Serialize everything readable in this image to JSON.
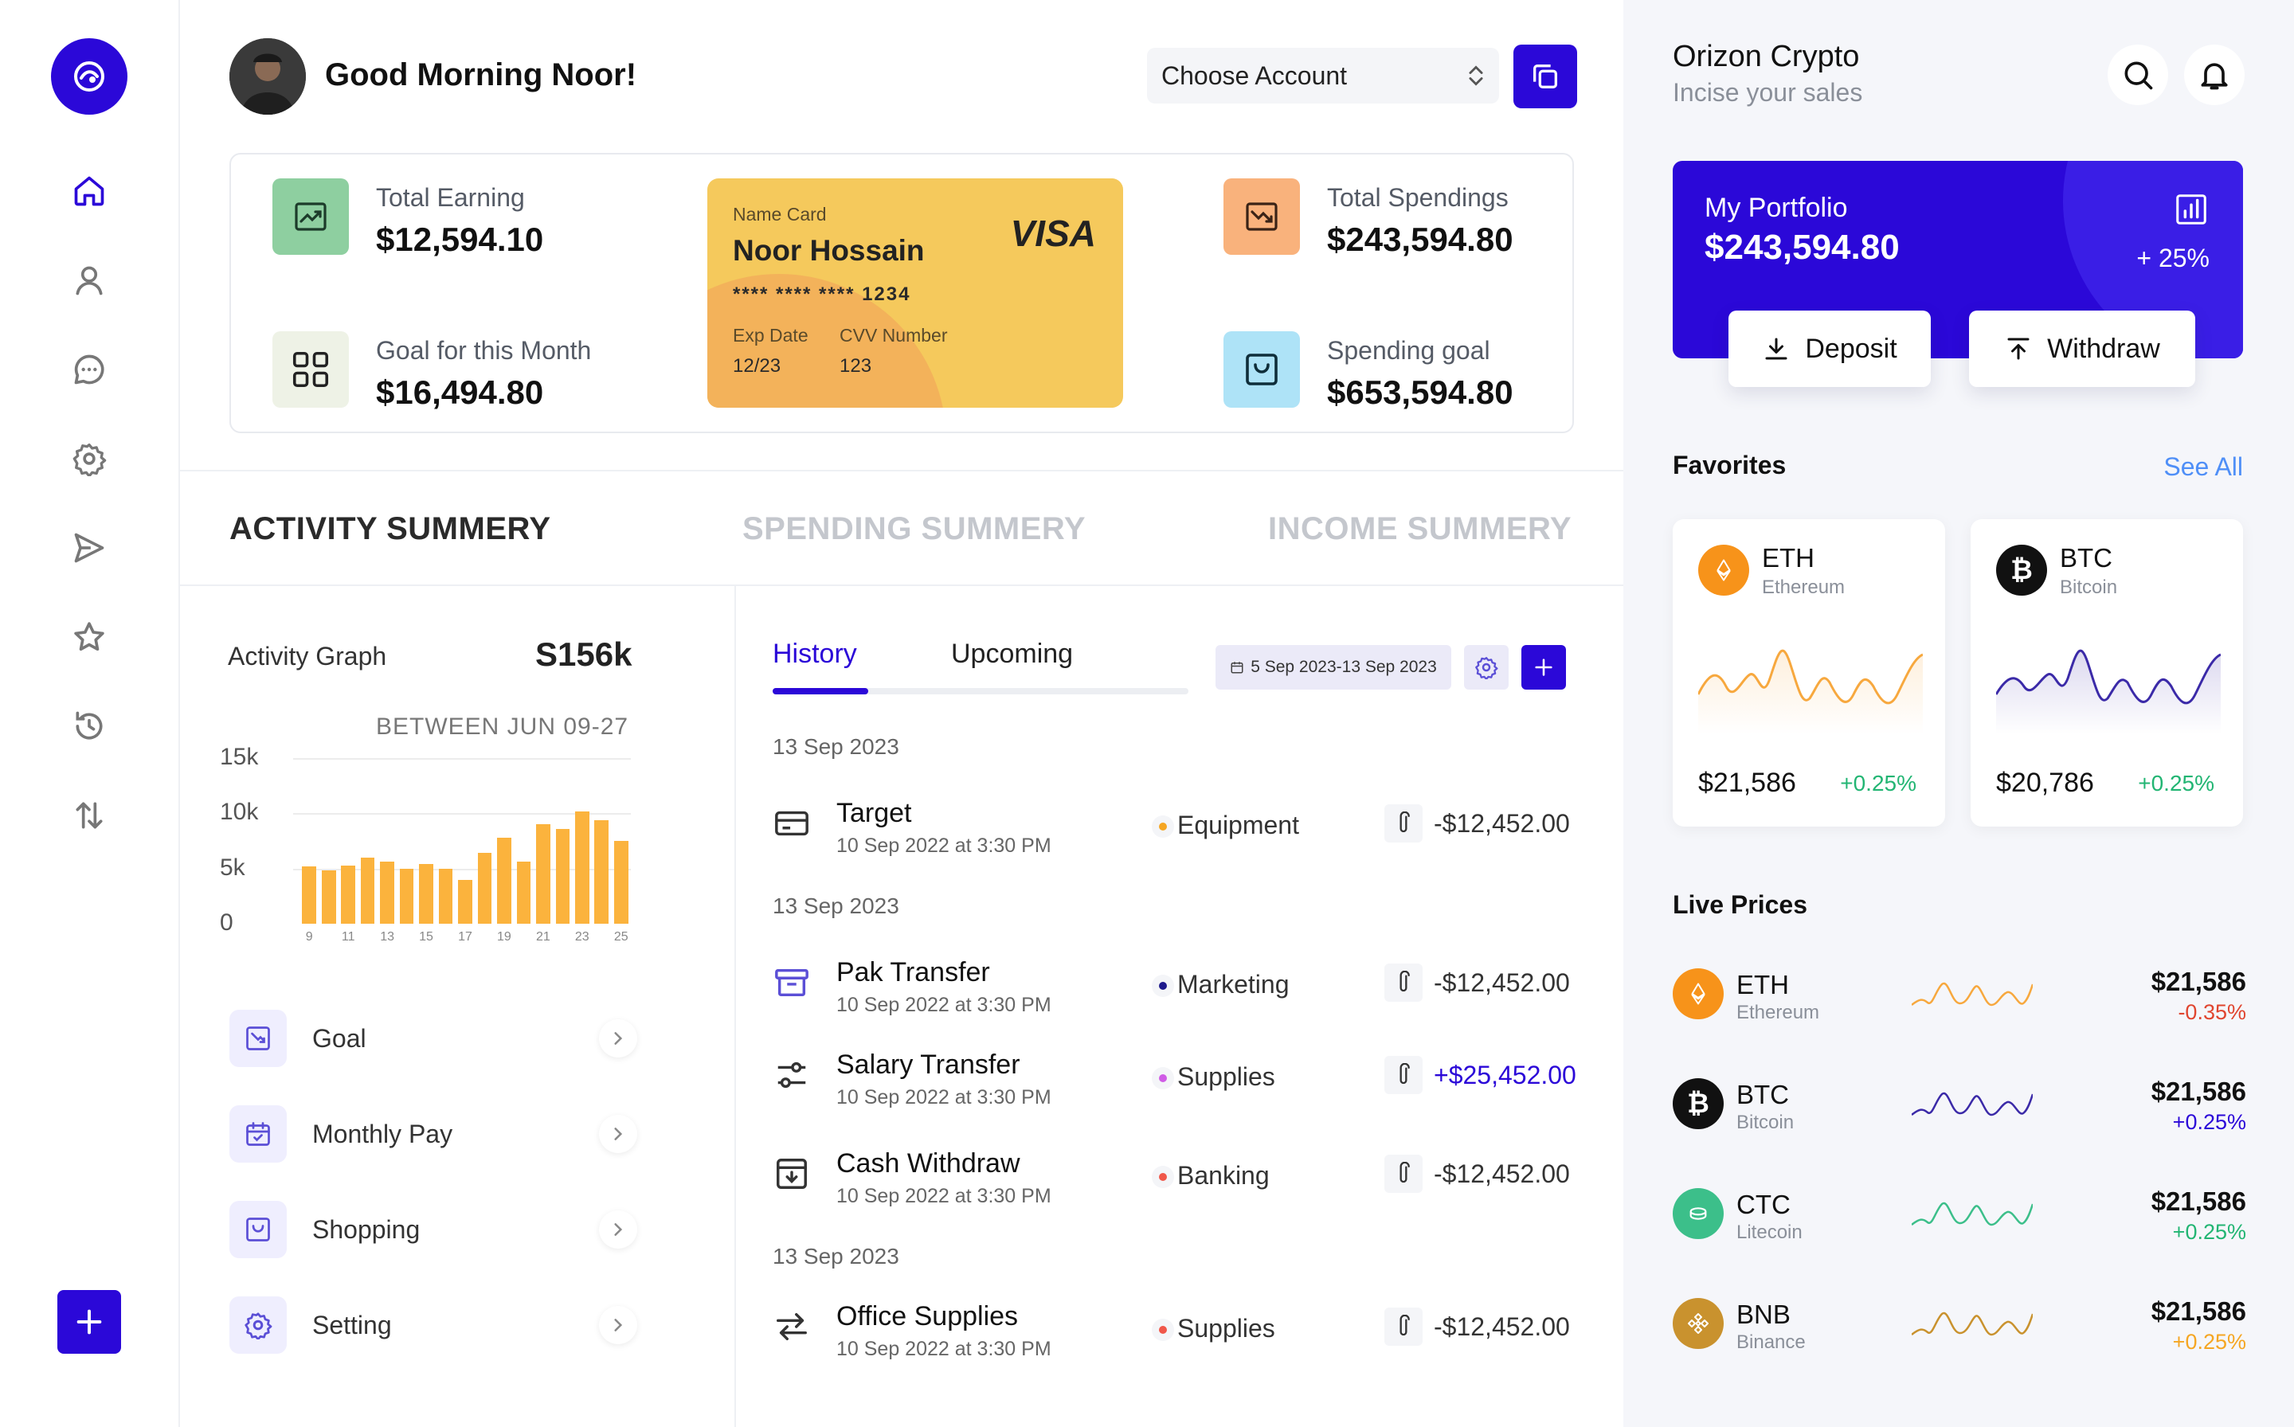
{
  "header": {
    "greeting": "Good Morning Noor!",
    "account_select": "Choose Account"
  },
  "stats": {
    "total_earning": {
      "label": "Total Earning",
      "value": "$12,594.10"
    },
    "goal_month": {
      "label": "Goal for this Month",
      "value": "$16,494.80"
    },
    "total_spendings": {
      "label": "Total Spendings",
      "value": "$243,594.80"
    },
    "spending_goal": {
      "label": "Spending goal",
      "value": "$653,594.80"
    }
  },
  "card": {
    "name_label": "Name Card",
    "holder": "Noor Hossain",
    "brand": "VISA",
    "number": "**** **** **** 1234",
    "exp_label": "Exp Date",
    "exp_value": "12/23",
    "cvv_label": "CVV Number",
    "cvv_value": "123"
  },
  "summary_tabs": [
    "ACTIVITY SUMMERY",
    "SPENDING SUMMERY",
    "INCOME SUMMERY"
  ],
  "activity": {
    "title": "Activity Graph",
    "value": "S156k",
    "range": "BETWEEN JUN 09-27"
  },
  "chart_data": {
    "type": "bar",
    "categories": [
      "9",
      "10",
      "11",
      "12",
      "13",
      "14",
      "15",
      "16",
      "17",
      "18",
      "19",
      "20",
      "21",
      "22",
      "23",
      "24",
      "25"
    ],
    "values": [
      5.2,
      4.8,
      5.3,
      6.0,
      5.6,
      5.0,
      5.4,
      5.0,
      4.0,
      6.4,
      7.8,
      5.6,
      9.0,
      8.6,
      10.2,
      9.4,
      7.5
    ],
    "x_tick_labels": [
      "9",
      "11",
      "13",
      "15",
      "17",
      "19",
      "21",
      "23",
      "25"
    ],
    "y_tick_labels": [
      "15k",
      "10k",
      "5k",
      "0"
    ],
    "ylim": [
      0,
      15
    ],
    "title": "Activity Graph",
    "xlabel": "",
    "ylabel": "",
    "grid": true,
    "color": "#fbb33d"
  },
  "activity_menu": [
    {
      "label": "Goal",
      "icon": "trend-down-icon"
    },
    {
      "label": "Monthly Pay",
      "icon": "calendar-check-icon"
    },
    {
      "label": "Shopping",
      "icon": "inbox-icon"
    },
    {
      "label": "Setting",
      "icon": "gear-icon"
    }
  ],
  "history": {
    "tabs": [
      "History",
      "Upcoming"
    ],
    "date_range": "5 Sep 2023-13 Sep 2023",
    "groups": [
      {
        "date": "13 Sep 2023"
      },
      {
        "date": "13 Sep 2023"
      },
      {
        "date": "13 Sep 2023"
      }
    ],
    "transactions": [
      {
        "name": "Target",
        "sub": "10 Sep 2022 at 3:30 PM",
        "category": "Equipment",
        "dot": "#f5a623",
        "amount": "-$12,452.00",
        "amount_color": "#333333",
        "icon": "card-icon"
      },
      {
        "name": "Pak Transfer",
        "sub": "10 Sep 2022 at 3:30 PM",
        "category": "Marketing",
        "dot": "#1e1a8c",
        "amount": "-$12,452.00",
        "amount_color": "#333333",
        "icon": "archive-icon"
      },
      {
        "name": "Salary Transfer",
        "sub": "10 Sep 2022 at 3:30 PM",
        "category": "Supplies",
        "dot": "#d05ce6",
        "amount": "+$25,452.00",
        "amount_color": "#2b08d8",
        "icon": "sliders-icon"
      },
      {
        "name": "Cash Withdraw",
        "sub": "10 Sep 2022 at 3:30 PM",
        "category": "Banking",
        "dot": "#f0574a",
        "amount": "-$12,452.00",
        "amount_color": "#333333",
        "icon": "download-box-icon"
      },
      {
        "name": "Office Supplies",
        "sub": "10 Sep 2022 at 3:30 PM",
        "category": "Supplies",
        "dot": "#f0574a",
        "amount": "-$12,452.00",
        "amount_color": "#333333",
        "icon": "arrows-swap-icon"
      }
    ]
  },
  "right": {
    "title": "Orizon Crypto",
    "subtitle": "Incise your sales",
    "portfolio": {
      "label": "My Portfolio",
      "value": "$243,594.80",
      "change": "+ 25%"
    },
    "deposit": "Deposit",
    "withdraw": "Withdraw",
    "favorites_title": "Favorites",
    "see_all": "See All",
    "favorites": [
      {
        "symbol": "ETH",
        "name": "Ethereum",
        "price": "$21,586",
        "change": "+0.25%",
        "color": "#f7931a",
        "line": "#f7a83e"
      },
      {
        "symbol": "BTC",
        "name": "Bitcoin",
        "price": "$20,786",
        "change": "+0.25%",
        "color": "#111111",
        "line": "#3b2aa8"
      }
    ],
    "live_title": "Live Prices",
    "live": [
      {
        "symbol": "ETH",
        "name": "Ethereum",
        "price": "$21,586",
        "change": "-0.35%",
        "change_color": "#e0452f",
        "coin": "#f7931a",
        "line": "#f7a83e"
      },
      {
        "symbol": "BTC",
        "name": "Bitcoin",
        "price": "$21,586",
        "change": "+0.25%",
        "change_color": "#2b08d8",
        "coin": "#111111",
        "line": "#3b2aa8"
      },
      {
        "symbol": "CTC",
        "name": "Litecoin",
        "price": "$21,586",
        "change": "+0.25%",
        "change_color": "#22b573",
        "coin": "#3cbf8a",
        "line": "#3cbf8a"
      },
      {
        "symbol": "BNB",
        "name": "Binance",
        "price": "$21,586",
        "change": "+0.25%",
        "change_color": "#f5a623",
        "coin": "#c9922e",
        "line": "#c9922e"
      }
    ]
  },
  "colors": {
    "accent": "#2b08d8",
    "chart_bar": "#fbb33d",
    "positive": "#22b573",
    "negative": "#e0452f"
  }
}
